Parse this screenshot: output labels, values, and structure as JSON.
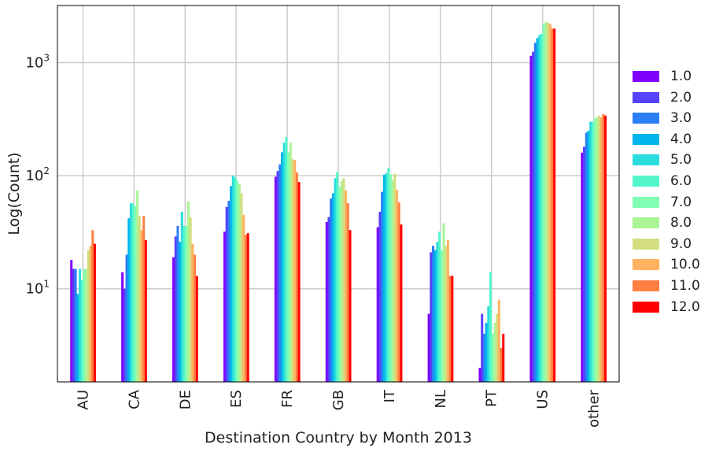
{
  "chart_data": {
    "type": "bar",
    "xlabel": "Destination Country by Month 2013",
    "ylabel": "Log(Count)",
    "yscale": "log",
    "ylim": [
      1.5,
      3200
    ],
    "grid": true,
    "legend_position": "right",
    "yticks": [
      {
        "value": 10,
        "base": "10",
        "exp": "1"
      },
      {
        "value": 100,
        "base": "10",
        "exp": "2"
      },
      {
        "value": 1000,
        "base": "10",
        "exp": "3"
      }
    ],
    "categories": [
      "AU",
      "CA",
      "DE",
      "ES",
      "FR",
      "GB",
      "IT",
      "NL",
      "PT",
      "US",
      "other"
    ],
    "series": [
      {
        "name": "1.0",
        "color": "#7f00ff",
        "values": [
          18,
          14,
          19,
          32,
          98,
          39,
          35,
          6,
          2,
          1150,
          160
        ]
      },
      {
        "name": "2.0",
        "color": "#5641fd",
        "values": [
          15,
          10,
          29,
          53,
          110,
          43,
          48,
          21,
          6,
          1250,
          180
        ]
      },
      {
        "name": "3.0",
        "color": "#2c7ef7",
        "values": [
          15,
          20,
          36,
          60,
          126,
          63,
          72,
          24,
          4,
          1500,
          240
        ]
      },
      {
        "name": "4.0",
        "color": "#00b5eb",
        "values": [
          9,
          42,
          26,
          81,
          161,
          70,
          102,
          22,
          5,
          1650,
          250
        ]
      },
      {
        "name": "5.0",
        "color": "#2adddd",
        "values": [
          15,
          57,
          48,
          100,
          196,
          95,
          105,
          26,
          7,
          1750,
          300
        ]
      },
      {
        "name": "6.0",
        "color": "#54f6cb",
        "values": [
          12,
          57,
          36,
          97,
          220,
          108,
          117,
          32,
          14,
          1800,
          300
        ]
      },
      {
        "name": "7.0",
        "color": "#80feb3",
        "values": [
          15,
          54,
          36,
          90,
          161,
          79,
          103,
          22,
          4,
          2200,
          320
        ]
      },
      {
        "name": "8.0",
        "color": "#aaf596",
        "values": [
          15,
          74,
          59,
          84,
          196,
          90,
          92,
          38,
          5,
          2300,
          330
        ]
      },
      {
        "name": "9.0",
        "color": "#d4dd80",
        "values": [
          22,
          44,
          43,
          70,
          140,
          95,
          104,
          24,
          6,
          2250,
          340
        ]
      },
      {
        "name": "10.0",
        "color": "#ffb360",
        "values": [
          24,
          33,
          25,
          45,
          138,
          74,
          75,
          27,
          8,
          2200,
          330
        ]
      },
      {
        "name": "11.0",
        "color": "#ff7e41",
        "values": [
          33,
          44,
          20,
          30,
          107,
          57,
          58,
          13,
          3,
          2000,
          350
        ]
      },
      {
        "name": "12.0",
        "color": "#ff0000",
        "values": [
          25,
          27,
          13,
          31,
          88,
          33,
          37,
          13,
          4,
          2000,
          340
        ]
      }
    ]
  }
}
